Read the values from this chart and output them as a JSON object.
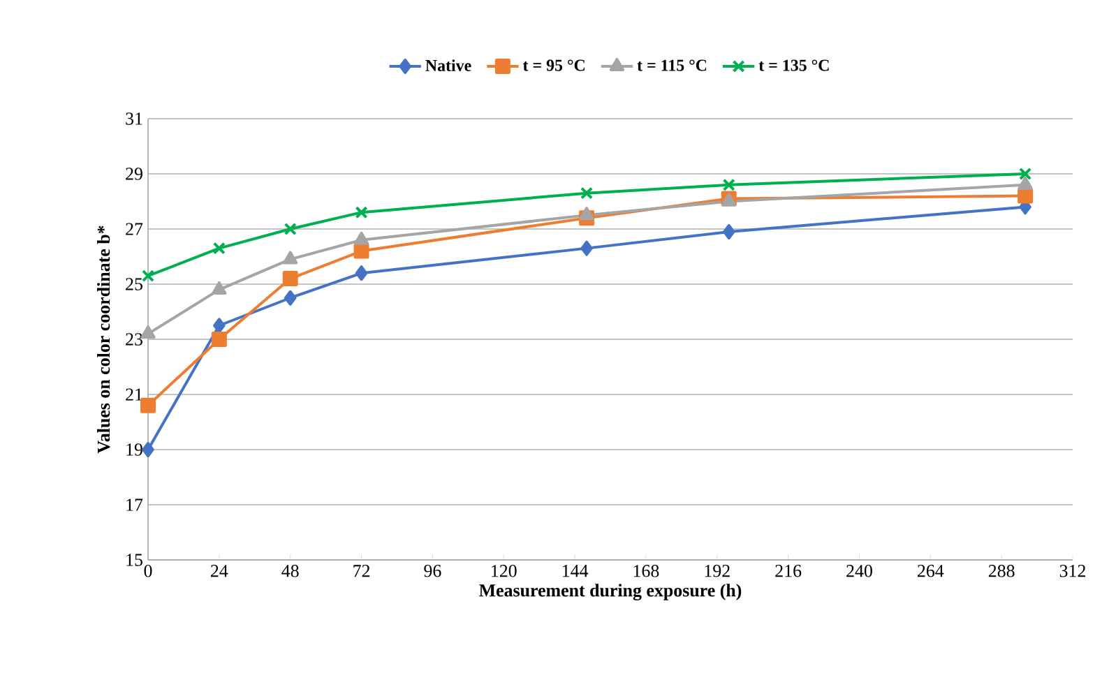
{
  "chart_data": {
    "type": "line",
    "xlabel": "Measurement during  exposure (h)",
    "ylabel": "Values on color coordinate b*",
    "xlim": [
      0,
      312
    ],
    "xticks": [
      0,
      24,
      48,
      72,
      96,
      120,
      144,
      168,
      192,
      216,
      240,
      264,
      288,
      312
    ],
    "ylim": [
      15,
      31
    ],
    "yticks": [
      15,
      17,
      19,
      21,
      23,
      25,
      27,
      29,
      31
    ],
    "grid": "y",
    "legend": "top",
    "line_style": "solid",
    "x": [
      0,
      24,
      48,
      72,
      148,
      196,
      296
    ],
    "series": [
      {
        "name": "Native",
        "color": "#4472c4",
        "marker": "diamond",
        "values": [
          19.0,
          23.5,
          24.5,
          25.4,
          26.3,
          26.9,
          27.8
        ]
      },
      {
        "name": "t = 95 °C",
        "color": "#ed7d31",
        "marker": "square",
        "values": [
          20.6,
          23.0,
          25.2,
          26.2,
          27.4,
          28.1,
          28.2
        ]
      },
      {
        "name": "t = 115 °C",
        "color": "#a5a5a5",
        "marker": "triangle",
        "values": [
          23.2,
          24.8,
          25.9,
          26.6,
          27.5,
          28.0,
          28.6
        ]
      },
      {
        "name": "t = 135 °C",
        "color": "#00b050",
        "marker": "cross",
        "values": [
          25.3,
          26.3,
          27.0,
          27.6,
          28.3,
          28.6,
          29.0
        ]
      }
    ]
  }
}
